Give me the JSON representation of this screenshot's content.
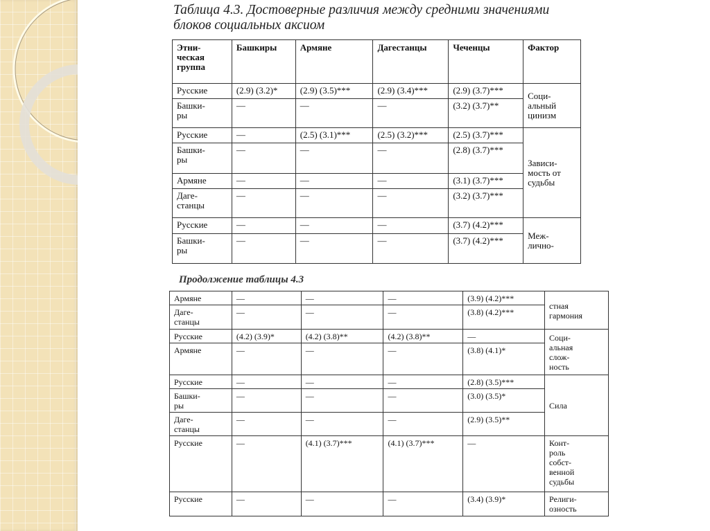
{
  "title_line1": "Таблица 4.3. Достоверные различия между средними значениями",
  "title_line2": "блоков социальных аксиом",
  "continuation_title": "Продолжение таблицы 4.3",
  "colors": {
    "side_panel": "#f3e2b8",
    "border": "#333333"
  },
  "table1": {
    "headers": [
      "Этни-\nческая\nгруппа",
      "Башкиры",
      "Армяне",
      "Дагестанцы",
      "Чеченцы",
      "Фактор"
    ],
    "groups": [
      {
        "factor": "Соци-\nальный\nцинизм",
        "rows": [
          {
            "group": "Русские",
            "cells": [
              "(2.9) (3.2)*",
              "(2.9) (3.5)***",
              "(2.9) (3.4)***",
              "(2.9) (3.7)***"
            ]
          },
          {
            "group": "Башки-\nры",
            "cells": [
              "—",
              "—",
              "—",
              "(3.2) (3.7)**"
            ]
          }
        ]
      },
      {
        "factor": "Зависи-\nмость от\nсудьбы",
        "rows": [
          {
            "group": "Русские",
            "cells": [
              "—",
              "(2.5) (3.1)***",
              "(2.5) (3.2)***",
              "(2.5) (3.7)***"
            ]
          },
          {
            "group": "Башки-\nры",
            "cells": [
              "—",
              "—",
              "—",
              "(2.8) (3.7)***"
            ]
          },
          {
            "group": "Армяне",
            "cells": [
              "—",
              "—",
              "—",
              "(3.1) (3.7)***"
            ]
          },
          {
            "group": "Даге-\nстанцы",
            "cells": [
              "—",
              "—",
              "—",
              "(3.2) (3.7)***"
            ]
          }
        ]
      },
      {
        "factor": "Меж-\nлично-",
        "rows": [
          {
            "group": "Русские",
            "cells": [
              "—",
              "—",
              "—",
              "(3.7) (4.2)***"
            ]
          },
          {
            "group": "Башки-\nры",
            "cells": [
              "—",
              "—",
              "—",
              "(3.7) (4.2)***"
            ]
          }
        ]
      }
    ]
  },
  "table2": {
    "groups": [
      {
        "factor": "стная\nгармония",
        "rows": [
          {
            "group": "Армяне",
            "cells": [
              "—",
              "—",
              "—",
              "(3.9) (4.2)***"
            ]
          },
          {
            "group": "Даге-\nстанцы",
            "cells": [
              "—",
              "—",
              "—",
              "(3.8) (4.2)***"
            ]
          }
        ]
      },
      {
        "factor": "Соци-\nальная\nслож-\nность",
        "rows": [
          {
            "group": "Русские",
            "cells": [
              "(4.2) (3.9)*",
              "(4.2) (3.8)**",
              "(4.2) (3.8)**",
              "—"
            ]
          },
          {
            "group": "Армяне",
            "cells": [
              "—",
              "—",
              "—",
              "(3.8) (4.1)*"
            ]
          }
        ]
      },
      {
        "factor": "Сила",
        "rows": [
          {
            "group": "Русские",
            "cells": [
              "—",
              "—",
              "—",
              "(2.8) (3.5)***"
            ]
          },
          {
            "group": "Башки-\nры",
            "cells": [
              "—",
              "—",
              "—",
              "(3.0) (3.5)*"
            ]
          },
          {
            "group": "Даге-\nстанцы",
            "cells": [
              "—",
              "—",
              "—",
              "(2.9) (3.5)**"
            ]
          }
        ]
      },
      {
        "factor": "Конт-\nроль\nсобст-\nвенной\nсудьбы",
        "rows": [
          {
            "group": "Русские",
            "cells": [
              "—",
              "(4.1) (3.7)***",
              "(4.1) (3.7)***",
              "—"
            ]
          }
        ]
      },
      {
        "factor": "Религи-\nозность",
        "rows": [
          {
            "group": "Русские",
            "cells": [
              "—",
              "—",
              "—",
              "(3.4) (3.9)*"
            ]
          }
        ]
      }
    ]
  }
}
